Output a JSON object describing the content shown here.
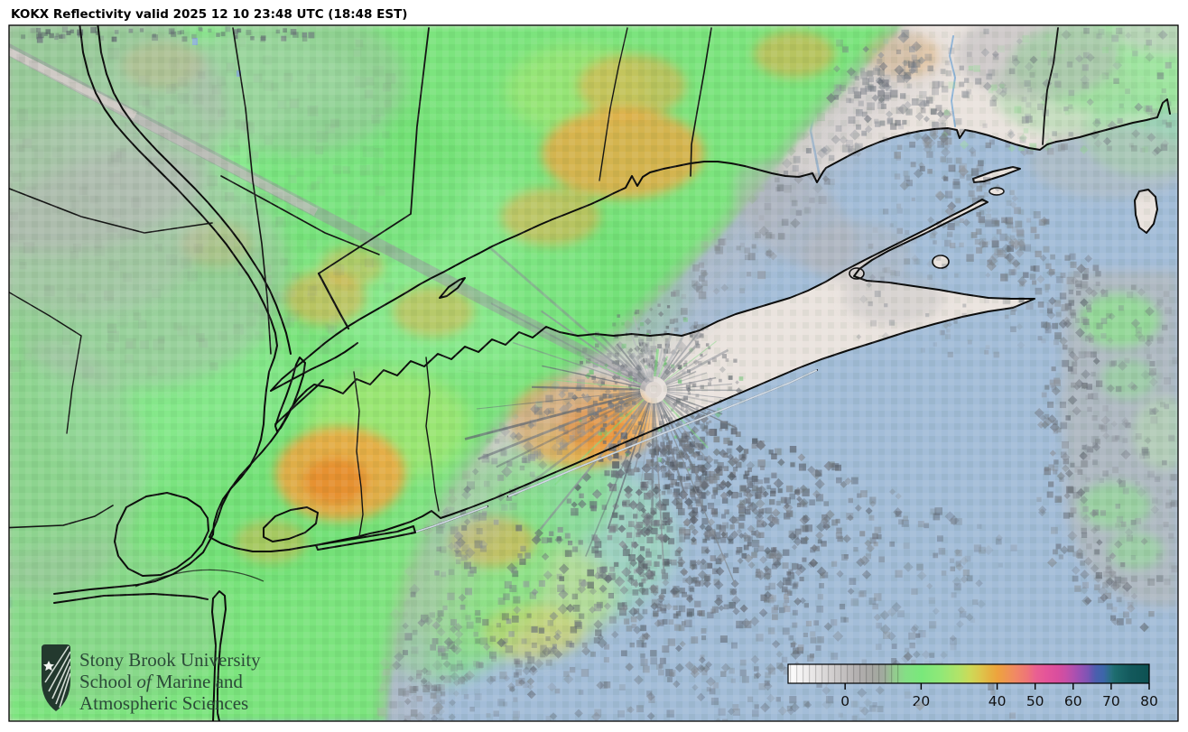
{
  "title": "KOKX Reflectivity valid 2025 12 10 23:48 UTC (18:48 EST)",
  "logo": {
    "line1": "Stony Brook University",
    "line2_pre": "School",
    "line2_italic": "of",
    "line2_post": "Marine and",
    "line3": "Atmospheric Sciences"
  },
  "colorbar": {
    "scale_min": -15,
    "scale_max": 80,
    "ticks": [
      0,
      20,
      40,
      50,
      60,
      70,
      80
    ],
    "stops": [
      {
        "v": -15,
        "c": "#ffffff"
      },
      {
        "v": -8,
        "c": "#e6e4e4"
      },
      {
        "v": -2,
        "c": "#cbc8c8"
      },
      {
        "v": 3,
        "c": "#b3b0b0"
      },
      {
        "v": 7,
        "c": "#a7a7a3"
      },
      {
        "v": 10,
        "c": "#a0aa9e"
      },
      {
        "v": 13,
        "c": "#93cb8e"
      },
      {
        "v": 16,
        "c": "#84df85"
      },
      {
        "v": 20,
        "c": "#79e87b"
      },
      {
        "v": 25,
        "c": "#8fe878"
      },
      {
        "v": 30,
        "c": "#b2e368"
      },
      {
        "v": 33,
        "c": "#cdd957"
      },
      {
        "v": 36,
        "c": "#dec44b"
      },
      {
        "v": 38,
        "c": "#e5b342"
      },
      {
        "v": 40,
        "c": "#eda33d"
      },
      {
        "v": 43,
        "c": "#ef9355"
      },
      {
        "v": 45,
        "c": "#f08766"
      },
      {
        "v": 48,
        "c": "#ee7478"
      },
      {
        "v": 50,
        "c": "#ea6190"
      },
      {
        "v": 53,
        "c": "#e4549a"
      },
      {
        "v": 56,
        "c": "#d94e9e"
      },
      {
        "v": 58,
        "c": "#c94fa6"
      },
      {
        "v": 60,
        "c": "#b150ae"
      },
      {
        "v": 62,
        "c": "#9751b4"
      },
      {
        "v": 64,
        "c": "#7b55b4"
      },
      {
        "v": 65,
        "c": "#5f58b0"
      },
      {
        "v": 66,
        "c": "#4a5fae"
      },
      {
        "v": 68,
        "c": "#3c66a9"
      },
      {
        "v": 70,
        "c": "#27707f"
      },
      {
        "v": 71,
        "c": "#1d6c6e"
      },
      {
        "v": 75,
        "c": "#13595c"
      },
      {
        "v": 80,
        "c": "#0d5152"
      }
    ]
  },
  "palette": {
    "water": "#a3bdd8",
    "land": "#eae3de",
    "echo_green": "#7ce47e",
    "echo_orange": "#f2a440",
    "clutter_gray": "#6e747e",
    "logo_green": "#2b4a38"
  }
}
